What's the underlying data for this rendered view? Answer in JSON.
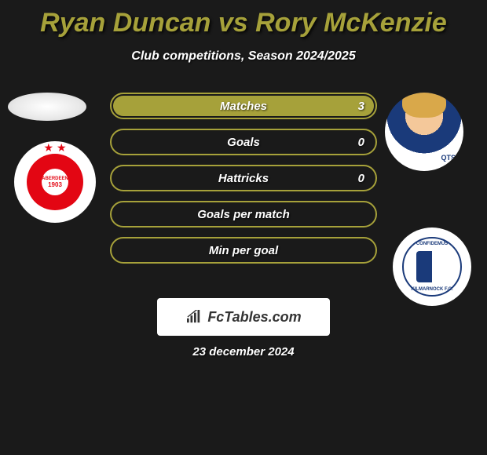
{
  "title_color": "#a6a13a",
  "title": "Ryan Duncan vs Rory McKenzie",
  "subtitle": "Club competitions, Season 2024/2025",
  "bar_style": {
    "border_color": "#a6a13a",
    "fill_color": "#a6a13a"
  },
  "stats": [
    {
      "label": "Matches",
      "value": "3",
      "fill_pct": 100
    },
    {
      "label": "Goals",
      "value": "0",
      "fill_pct": 0
    },
    {
      "label": "Hattricks",
      "value": "0",
      "fill_pct": 0
    },
    {
      "label": "Goals per match",
      "value": "",
      "fill_pct": 0
    },
    {
      "label": "Min per goal",
      "value": "",
      "fill_pct": 0
    }
  ],
  "player_left": {
    "name": "Ryan Duncan",
    "club": "Aberdeen",
    "club_year": "1903"
  },
  "player_right": {
    "name": "Rory McKenzie",
    "club": "Kilmarnock",
    "sponsor": "QTS"
  },
  "club_right_labels": {
    "top": "CONFIDEMUS",
    "bottom": "KILMARNOCK F.C."
  },
  "branding": {
    "text": "FcTables.com"
  },
  "date": "23 december 2024"
}
